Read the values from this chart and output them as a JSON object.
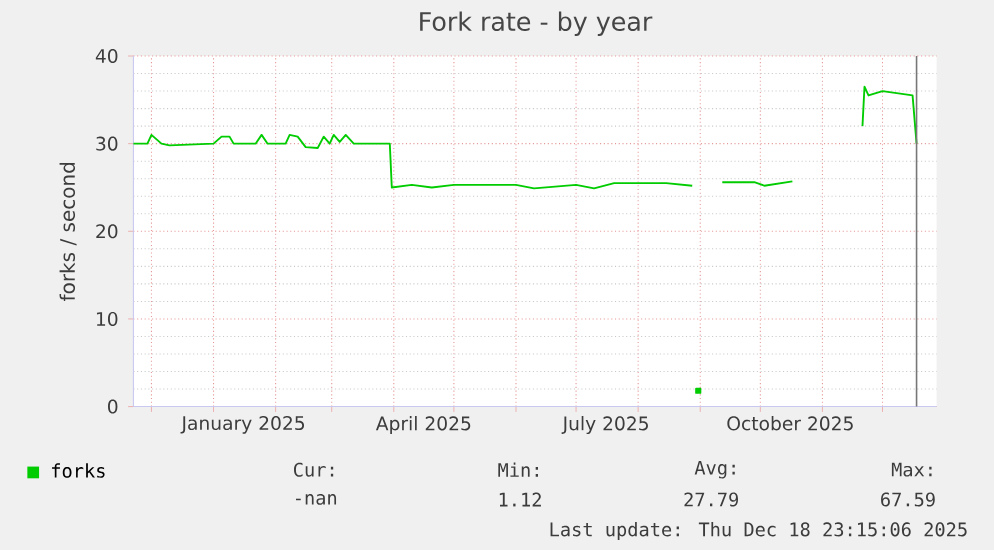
{
  "chart_data": {
    "type": "line",
    "title": "Fork rate - by year",
    "ylabel": "forks / second",
    "xlim": [
      "2024-11-22",
      "2025-12-28"
    ],
    "xticks": [
      {
        "value": "2024-12-01",
        "label": null
      },
      {
        "value": "2025-01-01",
        "label": null
      },
      {
        "value": "2025-01-16",
        "label": "January 2025"
      },
      {
        "value": "2025-02-01",
        "label": null
      },
      {
        "value": "2025-03-01",
        "label": null
      },
      {
        "value": "2025-04-01",
        "label": null
      },
      {
        "value": "2025-04-16",
        "label": "April 2025"
      },
      {
        "value": "2025-05-01",
        "label": null
      },
      {
        "value": "2025-06-01",
        "label": null
      },
      {
        "value": "2025-07-01",
        "label": null
      },
      {
        "value": "2025-07-16",
        "label": "July 2025"
      },
      {
        "value": "2025-08-01",
        "label": null
      },
      {
        "value": "2025-09-01",
        "label": null
      },
      {
        "value": "2025-10-01",
        "label": null
      },
      {
        "value": "2025-10-16",
        "label": "October 2025"
      },
      {
        "value": "2025-11-01",
        "label": null
      },
      {
        "value": "2025-12-01",
        "label": null
      }
    ],
    "ylim": [
      0,
      40
    ],
    "yticks": [
      0,
      10,
      20,
      30,
      40
    ],
    "grid": true,
    "legend": "bottom",
    "marker": "none",
    "line_style": "solid",
    "ref_lines": [
      {
        "axis": "x",
        "value": "2025-12-18",
        "color": "#777777"
      }
    ],
    "annotations": [
      "Cur:",
      "Min:",
      "Avg:",
      "Max:",
      "-nan",
      "1.12",
      "27.79",
      "67.59",
      "Last update: Thu Dec 18 23:15:06 2025"
    ],
    "series": [
      {
        "name": "forks",
        "color": "#00cc00",
        "x": [
          "2024-11-22",
          "2024-11-29",
          "2024-12-01",
          "2024-12-06",
          "2024-12-10",
          "2025-01-01",
          "2025-01-05",
          "2025-01-09",
          "2025-01-11",
          "2025-01-22",
          "2025-01-25",
          "2025-01-28",
          "2025-02-06",
          "2025-02-08",
          "2025-02-12",
          "2025-02-16",
          "2025-02-22",
          "2025-02-25",
          "2025-02-28",
          "2025-03-02",
          "2025-03-05",
          "2025-03-08",
          "2025-03-12",
          "2025-03-15",
          "2025-03-24",
          "2025-03-30",
          "2025-03-31",
          "2025-04-10",
          "2025-04-20",
          "2025-05-01",
          "2025-06-01",
          "2025-06-10",
          "2025-07-01",
          "2025-07-10",
          "2025-07-20",
          "2025-08-15",
          "2025-08-28",
          "2025-08-29",
          "2025-09-12",
          "2025-09-28",
          "2025-10-03",
          "2025-10-17",
          "2025-10-18",
          "2025-11-21",
          "2025-11-22",
          "2025-11-24",
          "2025-12-01",
          "2025-12-16",
          "2025-12-18"
        ],
        "values": [
          30.0,
          30.0,
          31.0,
          30.0,
          29.8,
          30.0,
          30.8,
          30.8,
          30.0,
          30.0,
          31.0,
          30.0,
          30.0,
          31.0,
          30.8,
          29.6,
          29.5,
          30.8,
          30.0,
          31.0,
          30.2,
          31.0,
          30.0,
          30.0,
          30.0,
          30.0,
          25.0,
          25.3,
          25.0,
          25.3,
          25.3,
          24.9,
          25.3,
          24.9,
          25.5,
          25.5,
          25.2,
          null,
          25.6,
          25.6,
          25.2,
          25.7,
          null,
          32.0,
          36.5,
          35.5,
          36.0,
          35.5,
          30.0
        ]
      },
      {
        "type": "scatter",
        "marker": "square",
        "color": "#00cc00",
        "x": [
          "2025-08-31"
        ],
        "values": [
          1.8
        ]
      }
    ]
  }
}
